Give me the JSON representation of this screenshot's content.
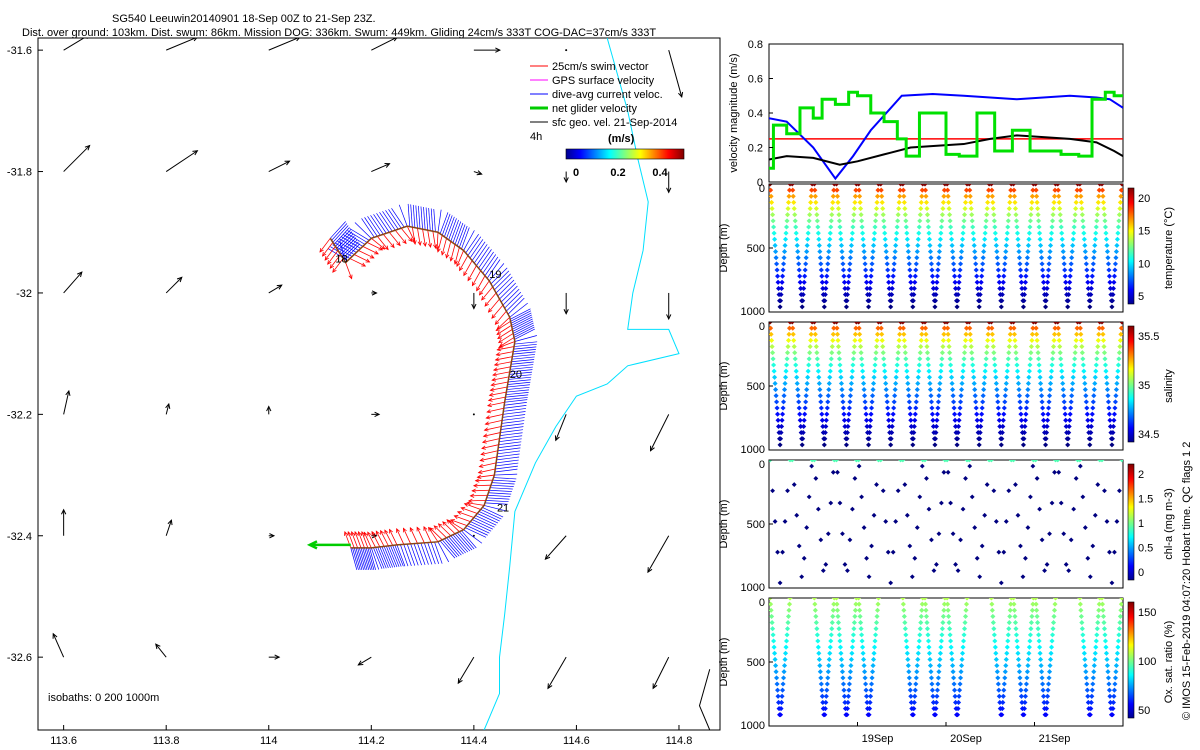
{
  "header": {
    "line1": "SG540 Leeuwin20140901 18-Sep 00Z to 21-Sep 23Z.",
    "line2": "Dist. over ground: 103km. Dist. swum: 86km. Mission DOG: 336km. Swum: 449km. Gliding 24cm/s 333T COG-DAC=37cm/s 333T"
  },
  "credit": "© IMOS 15-Feb-2019 04:07:20 Hobart time. QC flags 1  2",
  "colors": {
    "swim": "#ff0000",
    "gps": "#ff00ff",
    "dac": "#0000ff",
    "net": "#00cc00",
    "geo": "#000000",
    "coast": "#00e0ff",
    "track": "#8b4513"
  },
  "chart_data": [
    {
      "type": "quiver-map",
      "name": "track-map",
      "xlabel": "",
      "ylabel": "",
      "xlim": [
        113.55,
        114.88
      ],
      "ylim": [
        -32.72,
        -31.58
      ],
      "xticks": [
        113.6,
        113.8,
        114,
        114.2,
        114.4,
        114.6,
        114.8
      ],
      "xtick_labels": [
        "113.6",
        "113.8",
        "114",
        "114.2",
        "114.4",
        "114.6",
        "114.8"
      ],
      "yticks": [
        -31.6,
        -31.8,
        -32,
        -32.2,
        -32.4,
        -32.6
      ],
      "ytick_labels": [
        "-31.6",
        "-31.8",
        "-32",
        "-32.2",
        "-32.4",
        "-32.6"
      ],
      "legend": {
        "placement": "top-right",
        "entries": [
          {
            "label": "25cm/s swim vector",
            "color": "#ff0000"
          },
          {
            "label": "GPS surface velocity",
            "color": "#ff00ff"
          },
          {
            "label": "dive-avg current veloc.",
            "color": "#0000ff"
          },
          {
            "label": "net glider velocity",
            "color": "#00cc00"
          },
          {
            "label": "sfc geo. vel. 21-Sep-2014",
            "color": "#000000"
          }
        ],
        "interval_label": "4h",
        "colorbar_title": "(m/s)",
        "colorbar_ticks": [
          "0",
          "0.2",
          "0.4"
        ]
      },
      "isobaths_label": "isobaths: 0   200  1000m",
      "track": [
        [
          114.12,
          -31.91
        ],
        [
          114.15,
          -31.95
        ],
        [
          114.2,
          -31.91
        ],
        [
          114.27,
          -31.89
        ],
        [
          114.33,
          -31.9
        ],
        [
          114.38,
          -31.93
        ],
        [
          114.43,
          -31.98
        ],
        [
          114.47,
          -32.04
        ],
        [
          114.48,
          -32.08
        ],
        [
          114.47,
          -32.13
        ],
        [
          114.46,
          -32.18
        ],
        [
          114.45,
          -32.24
        ],
        [
          114.44,
          -32.3
        ],
        [
          114.42,
          -32.35
        ],
        [
          114.38,
          -32.39
        ],
        [
          114.33,
          -32.41
        ],
        [
          114.25,
          -32.415
        ],
        [
          114.2,
          -32.42
        ],
        [
          114.16,
          -32.42
        ]
      ],
      "day_labels": [
        {
          "text": "18",
          "lon": 114.13,
          "lat": -31.95
        },
        {
          "text": "19",
          "lon": 114.43,
          "lat": -31.975
        },
        {
          "text": "20",
          "lon": 114.47,
          "lat": -32.14
        },
        {
          "text": "21",
          "lon": 114.445,
          "lat": -32.36
        }
      ],
      "net_velocity": {
        "from": [
          114.16,
          -32.415
        ],
        "to": [
          114.08,
          -32.415
        ]
      },
      "geo_vectors": {
        "lons": [
          113.6,
          113.8,
          114.0,
          114.2,
          114.4,
          114.58,
          114.78
        ],
        "lats": [
          -31.6,
          -31.8,
          -32.0,
          -32.2,
          -32.4,
          -32.6
        ],
        "u": [
          [
            0.1,
            0.12,
            0.12,
            0.1,
            0.1,
            0.0,
            0.05
          ],
          [
            0.1,
            0.12,
            0.08,
            0.07,
            0.03,
            0.0,
            0.0
          ],
          [
            0.07,
            0.06,
            0.05,
            0.02,
            0.0,
            0.0,
            0.0
          ],
          [
            0.02,
            0.01,
            0.0,
            0.03,
            0.0,
            -0.04,
            -0.07
          ],
          [
            0.0,
            0.02,
            0.02,
            0.02,
            0.0,
            -0.08,
            -0.08
          ],
          [
            -0.04,
            -0.04,
            0.04,
            -0.05,
            -0.06,
            -0.07,
            -0.06
          ]
        ],
        "v": [
          [
            0.06,
            0.05,
            0.05,
            0.05,
            0.0,
            0.0,
            -0.18
          ],
          [
            0.1,
            0.08,
            0.04,
            0.03,
            -0.01,
            -0.04,
            -0.08
          ],
          [
            0.08,
            0.06,
            0.03,
            0.0,
            -0.06,
            -0.08,
            -0.1
          ],
          [
            0.09,
            0.04,
            0.03,
            0.0,
            0.0,
            -0.1,
            -0.14
          ],
          [
            0.1,
            0.06,
            0.0,
            0.0,
            0.0,
            -0.09,
            -0.14
          ],
          [
            0.09,
            0.05,
            0.0,
            -0.03,
            -0.1,
            -0.12,
            -0.12
          ]
        ]
      },
      "coastline": [
        [
          114.66,
          -31.58
        ],
        [
          114.7,
          -31.7
        ],
        [
          114.72,
          -31.78
        ],
        [
          114.74,
          -31.85
        ],
        [
          114.73,
          -31.93
        ],
        [
          114.71,
          -32.0
        ],
        [
          114.7,
          -32.06
        ],
        [
          114.78,
          -32.06
        ],
        [
          114.8,
          -32.1
        ],
        [
          114.7,
          -32.12
        ],
        [
          114.66,
          -32.15
        ],
        [
          114.6,
          -32.17
        ],
        [
          114.56,
          -32.22
        ],
        [
          114.52,
          -32.28
        ],
        [
          114.48,
          -32.36
        ],
        [
          114.47,
          -32.45
        ],
        [
          114.46,
          -32.53
        ],
        [
          114.45,
          -32.6
        ],
        [
          114.45,
          -32.66
        ],
        [
          114.42,
          -32.72
        ]
      ]
    },
    {
      "type": "line",
      "name": "velocity-magnitude",
      "ylabel": "velocity magnitude (m/s)",
      "xlim": [
        18.0,
        22.0
      ],
      "ylim": [
        0,
        0.8
      ],
      "yticks": [
        0,
        0.2,
        0.4,
        0.6,
        0.8
      ],
      "ytick_labels": [
        "0",
        "0.2",
        "0.4",
        "0.6",
        "0.8"
      ],
      "threshold": 0.25,
      "series": [
        {
          "name": "dive-avg current",
          "color": "#0000ff",
          "x": [
            18.0,
            18.2,
            18.5,
            18.75,
            18.95,
            19.15,
            19.5,
            19.85,
            20.2,
            20.5,
            20.8,
            21.1,
            21.4,
            21.7,
            21.85,
            22.0
          ],
          "y": [
            0.37,
            0.35,
            0.2,
            0.02,
            0.15,
            0.3,
            0.5,
            0.51,
            0.5,
            0.49,
            0.48,
            0.49,
            0.5,
            0.49,
            0.48,
            0.43
          ]
        },
        {
          "name": "net glider",
          "color": "#000000",
          "x": [
            18.0,
            18.2,
            18.5,
            18.8,
            19.0,
            19.3,
            19.6,
            19.9,
            20.2,
            20.5,
            20.8,
            21.1,
            21.4,
            21.7,
            21.9,
            22.0
          ],
          "y": [
            0.13,
            0.15,
            0.14,
            0.1,
            0.12,
            0.16,
            0.2,
            0.21,
            0.22,
            0.25,
            0.27,
            0.26,
            0.25,
            0.23,
            0.18,
            0.15
          ]
        },
        {
          "name": "swim",
          "color": "#00e000",
          "step": true,
          "x": [
            18.0,
            18.05,
            18.2,
            18.35,
            18.5,
            18.6,
            18.75,
            18.9,
            19.0,
            19.15,
            19.3,
            19.45,
            19.55,
            19.7,
            19.85,
            20.0,
            20.15,
            20.35,
            20.55,
            20.75,
            20.95,
            21.1,
            21.3,
            21.5,
            21.65,
            21.8,
            21.9,
            22.0
          ],
          "y": [
            0.08,
            0.33,
            0.28,
            0.43,
            0.37,
            0.48,
            0.45,
            0.52,
            0.5,
            0.4,
            0.35,
            0.25,
            0.15,
            0.4,
            0.4,
            0.16,
            0.15,
            0.4,
            0.18,
            0.3,
            0.18,
            0.18,
            0.16,
            0.15,
            0.48,
            0.52,
            0.5,
            0.5
          ]
        }
      ]
    },
    {
      "type": "scatter-section",
      "name": "temperature-section",
      "ylabel": "Depth (m)",
      "yticks": [
        0,
        500,
        1000
      ],
      "ytick_labels": [
        "0",
        "500",
        "1000"
      ],
      "ylim": [
        1000,
        0
      ],
      "xlim": [
        18.0,
        22.0
      ],
      "n_dives": 16,
      "colorbar_label": "temperature (°C)",
      "colorbar_ticks": [
        "20",
        "15",
        "10",
        "5"
      ],
      "clim": [
        3,
        22
      ]
    },
    {
      "type": "scatter-section",
      "name": "salinity-section",
      "ylabel": "Depth (m)",
      "yticks": [
        0,
        500,
        1000
      ],
      "ytick_labels": [
        "0",
        "500",
        "1000"
      ],
      "ylim": [
        1000,
        0
      ],
      "xlim": [
        18.0,
        22.0
      ],
      "n_dives": 16,
      "colorbar_label": "salinity",
      "colorbar_ticks": [
        "35.5",
        "35",
        "34.5"
      ],
      "clim": [
        34.3,
        35.9
      ]
    },
    {
      "type": "scatter-section",
      "name": "chla-section",
      "ylabel": "Depth (m)",
      "yticks": [
        0,
        500,
        1000
      ],
      "ytick_labels": [
        "0",
        "500",
        "1000"
      ],
      "ylim": [
        1000,
        0
      ],
      "xlim": [
        18.0,
        22.0
      ],
      "n_dives": 16,
      "colorbar_label": "chl-a (mg m-3)",
      "colorbar_ticks": [
        "2",
        "1.5",
        "1",
        "0.5",
        "0"
      ],
      "clim": [
        0,
        2
      ]
    },
    {
      "type": "scatter-section",
      "name": "oxygen-section",
      "ylabel": "Depth (m)",
      "yticks": [
        0,
        500,
        1000
      ],
      "ytick_labels": [
        "0",
        "500",
        "1000"
      ],
      "ylim": [
        1000,
        0
      ],
      "xlim": [
        18.0,
        22.0
      ],
      "n_dives": 16,
      "colorbar_label": "Ox. sat. ratio (%)",
      "colorbar_ticks": [
        "150",
        "100",
        "50"
      ],
      "clim": [
        20,
        175
      ],
      "xticks": [
        19,
        20,
        21
      ],
      "xtick_labels": [
        "19Sep",
        "20Sep",
        "21Sep"
      ]
    }
  ]
}
